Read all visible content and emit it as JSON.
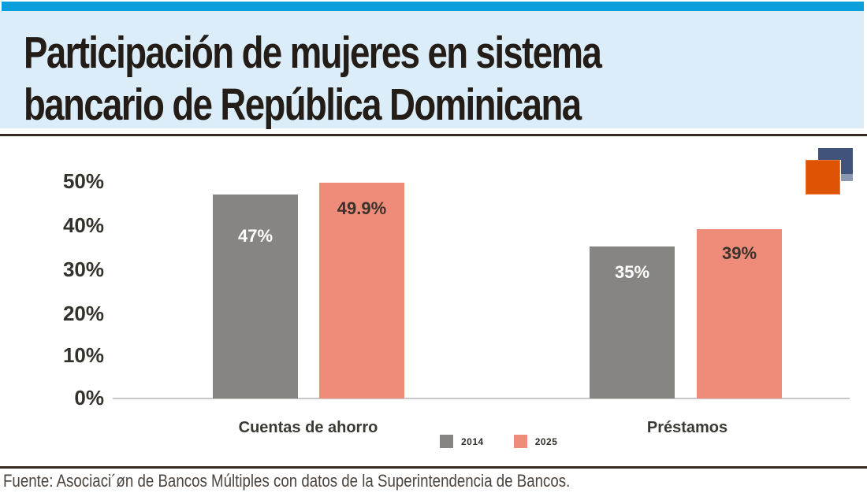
{
  "header": {
    "title_line1": "Participación de mujeres en sistema",
    "title_line2": "bancario de República Dominicana"
  },
  "chart_data": {
    "type": "bar",
    "title": "Participación de mujeres en sistema bancario de República Dominicana",
    "categories": [
      "Cuentas de ahorro",
      "Préstamos"
    ],
    "series": [
      {
        "name": "2014",
        "color": "#868581",
        "values": [
          47,
          35
        ],
        "value_labels": [
          "47%",
          "35%"
        ],
        "label_color": "#ffffff"
      },
      {
        "name": "2025",
        "color": "#ee8b79",
        "values": [
          49.9,
          39
        ],
        "value_labels": [
          "49.9%",
          "39%"
        ],
        "label_color": "#3a332c"
      }
    ],
    "yticks": [
      "50%",
      "40%",
      "30%",
      "20%",
      "10%",
      "0%"
    ],
    "ylim": [
      0,
      50
    ],
    "grid": false,
    "legend_position": "bottom-center",
    "xlabel": "",
    "ylabel": ""
  },
  "legend": {
    "items": [
      {
        "label": "2014",
        "color": "#868581"
      },
      {
        "label": "2025",
        "color": "#ee8b79"
      }
    ]
  },
  "logo": {
    "name": "overlapping-squares-logo",
    "orange": "#df5305",
    "navy": "#41537b"
  },
  "footer": {
    "source": "Fuente: Asociaci´øn de Bancos Múltiples con datos de la Superintendencia de Bancos."
  },
  "colors": {
    "topbar_blue": "#0a9fdb",
    "header_band": "#dbedf8",
    "title_text": "#241c16",
    "rule_dark": "#372a23",
    "axis_text": "#32312a",
    "baseline_gray": "#c9c9c9",
    "bar_gray": "#868581",
    "bar_salmon": "#ee8b79",
    "footer_text": "#4c443e"
  }
}
